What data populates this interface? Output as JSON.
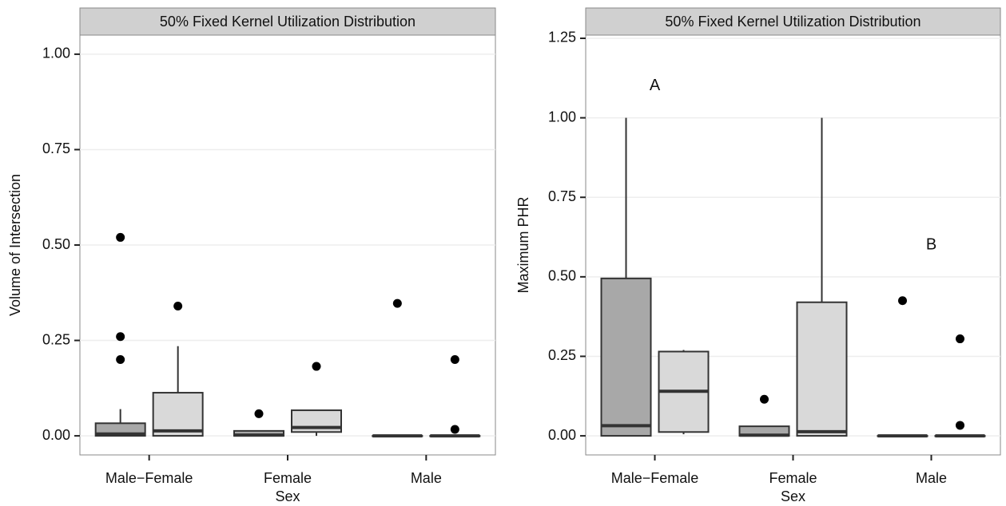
{
  "chart_data": [
    {
      "type": "box",
      "title": "50% Fixed Kernel Utilization Distribution",
      "xlabel": "Sex",
      "ylabel": "Volume of Intersection",
      "categories": [
        "Male−Female",
        "Female",
        "Male"
      ],
      "ylim": [
        -0.05,
        1.05
      ],
      "yticks": [
        {
          "value": 0,
          "label": "0.00"
        },
        {
          "value": 0.25,
          "label": "0.25"
        },
        {
          "value": 0.5,
          "label": "0.50"
        },
        {
          "value": 0.75,
          "label": "0.75"
        },
        {
          "value": 1,
          "label": "1.00"
        }
      ],
      "grid": true,
      "series": [
        {
          "color": "#a8a8a8",
          "boxes": [
            {
              "low": 0,
              "q1": 0,
              "median": 0.005,
              "q3": 0.033,
              "high": 0.07,
              "outliers": [
                0.52,
                0.26,
                0.2
              ]
            },
            {
              "low": 0,
              "q1": 0,
              "median": 0.002,
              "q3": 0.013,
              "high": 0.013,
              "outliers": [
                0.058
              ]
            },
            {
              "low": 0,
              "q1": 0,
              "median": 0,
              "q3": 0,
              "high": 0,
              "outliers": [
                0.347
              ]
            }
          ]
        },
        {
          "color": "#d9d9d9",
          "boxes": [
            {
              "low": 0,
              "q1": 0,
              "median": 0.013,
              "q3": 0.113,
              "high": 0.235,
              "outliers": [
                0.34
              ]
            },
            {
              "low": 0,
              "q1": 0.01,
              "median": 0.022,
              "q3": 0.067,
              "high": 0.067,
              "outliers": [
                0.182
              ]
            },
            {
              "low": 0,
              "q1": 0,
              "median": 0,
              "q3": 0,
              "high": 0,
              "outliers": [
                0.2,
                0.017
              ]
            }
          ]
        }
      ]
    },
    {
      "type": "box",
      "title": "50% Fixed Kernel Utilization Distribution",
      "xlabel": "Sex",
      "ylabel": "Maximum PHR",
      "categories": [
        "Male−Female",
        "Female",
        "Male"
      ],
      "ylim": [
        -0.06,
        1.26
      ],
      "yticks": [
        {
          "value": 0,
          "label": "0.00"
        },
        {
          "value": 0.25,
          "label": "0.25"
        },
        {
          "value": 0.5,
          "label": "0.50"
        },
        {
          "value": 0.75,
          "label": "0.75"
        },
        {
          "value": 1,
          "label": "1.00"
        },
        {
          "value": 1.25,
          "label": "1.25"
        }
      ],
      "grid": true,
      "annotations": [
        {
          "text": "A",
          "x": "Male−Female",
          "y": 1.1
        },
        {
          "text": "B",
          "x": "Male",
          "y": 0.6
        }
      ],
      "series": [
        {
          "color": "#a8a8a8",
          "boxes": [
            {
              "low": 0,
              "q1": 0,
              "median": 0.032,
              "q3": 0.495,
              "high": 1,
              "outliers": []
            },
            {
              "low": 0,
              "q1": 0,
              "median": 0.002,
              "q3": 0.03,
              "high": 0.03,
              "outliers": [
                0.115
              ]
            },
            {
              "low": 0,
              "q1": 0,
              "median": 0,
              "q3": 0,
              "high": 0,
              "outliers": [
                0.425
              ]
            }
          ]
        },
        {
          "color": "#d9d9d9",
          "boxes": [
            {
              "low": 0.005,
              "q1": 0.012,
              "median": 0.14,
              "q3": 0.265,
              "high": 0.27,
              "outliers": []
            },
            {
              "low": 0,
              "q1": 0,
              "median": 0.013,
              "q3": 0.42,
              "high": 1,
              "outliers": []
            },
            {
              "low": 0,
              "q1": 0,
              "median": 0,
              "q3": 0,
              "high": 0,
              "outliers": [
                0.305,
                0.033
              ]
            }
          ]
        }
      ]
    }
  ]
}
